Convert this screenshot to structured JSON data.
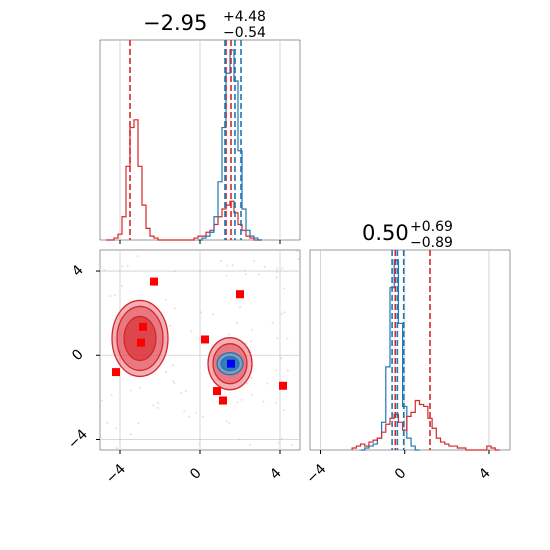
{
  "chart_data": [
    {
      "panel": "marginal-1",
      "type": "histogram",
      "title": {
        "value": "−2.95",
        "plus": "+4.48",
        "minus": "−0.54"
      },
      "xlim": [
        -5,
        5
      ],
      "grid": true,
      "quantile_lines": {
        "red": [
          -3.5,
          1.3,
          1.55
        ],
        "blue": [
          1.25,
          1.75,
          2.05
        ]
      },
      "series": [
        {
          "color": "#d62728",
          "x": [
            -4.6,
            -4.4,
            -4.2,
            -4.0,
            -3.8,
            -3.6,
            -3.4,
            -3.2,
            -3.0,
            -2.8,
            -2.6,
            -2.4,
            -2.2,
            -2.0,
            -1.8,
            -1.6,
            -1.4,
            -1.2,
            -1.0,
            -0.8,
            -0.6,
            -0.4,
            -0.2,
            0.0,
            0.2,
            0.4,
            0.6,
            0.8,
            1.0,
            1.2,
            1.4,
            1.6,
            1.8,
            2.0,
            2.2,
            2.4,
            2.6,
            2.8,
            3.0
          ],
          "values": [
            0,
            0,
            0.01,
            0.03,
            0.12,
            0.38,
            0.58,
            0.62,
            0.38,
            0.18,
            0.06,
            0.02,
            0.01,
            0,
            0,
            0,
            0,
            0,
            0,
            0,
            0,
            0,
            0.01,
            0.02,
            0.02,
            0.04,
            0.05,
            0.08,
            0.12,
            0.16,
            0.18,
            0.2,
            0.14,
            0.08,
            0.05,
            0.02,
            0.01,
            0,
            0
          ]
        },
        {
          "color": "#1f77b4",
          "x": [
            0.0,
            0.2,
            0.4,
            0.6,
            0.8,
            1.0,
            1.2,
            1.4,
            1.6,
            1.8,
            2.0,
            2.2,
            2.4,
            2.6,
            2.8,
            3.0
          ],
          "values": [
            0,
            0.01,
            0.02,
            0.04,
            0.12,
            0.3,
            0.58,
            0.86,
            0.98,
            0.82,
            0.46,
            0.16,
            0.05,
            0.02,
            0.01,
            0
          ]
        }
      ]
    },
    {
      "panel": "2d",
      "type": "contour-scatter",
      "xlim": [
        -5,
        5
      ],
      "ylim": [
        -4.5,
        5
      ],
      "grid": true,
      "red_region_centers": [
        [
          -3.0,
          0.8
        ],
        [
          1.5,
          -0.4
        ]
      ],
      "blue_region_center": [
        1.5,
        -0.4
      ],
      "red_squares": [
        [
          -2.3,
          3.5
        ],
        [
          -2.85,
          1.35
        ],
        [
          -2.95,
          0.6
        ],
        [
          -4.2,
          -0.8
        ],
        [
          0.25,
          0.75
        ],
        [
          2.0,
          2.9
        ],
        [
          4.15,
          -1.45
        ],
        [
          0.85,
          -1.7
        ],
        [
          1.15,
          -2.15
        ]
      ],
      "blue_square": [
        1.55,
        -0.4
      ],
      "xticks": [
        "−4",
        "0",
        "4"
      ],
      "yticks": [
        "−4",
        "0",
        "4"
      ]
    },
    {
      "panel": "marginal-2",
      "type": "histogram",
      "title": {
        "value": "0.50",
        "plus": "+0.69",
        "minus": "−0.89"
      },
      "xlim": [
        -4.5,
        5
      ],
      "grid": true,
      "quantile_lines": {
        "red": [
          -0.45,
          1.2
        ],
        "blue": [
          -0.6,
          -0.35,
          -0.05
        ]
      },
      "xticks": [
        "−4",
        "0",
        "4"
      ],
      "series": [
        {
          "color": "#1f77b4",
          "x": [
            -2.0,
            -1.8,
            -1.6,
            -1.4,
            -1.2,
            -1.0,
            -0.8,
            -0.6,
            -0.4,
            -0.2,
            0.0,
            0.2,
            0.4,
            0.6
          ],
          "values": [
            0,
            0.01,
            0.02,
            0.03,
            0.06,
            0.14,
            0.42,
            0.82,
            0.96,
            0.64,
            0.22,
            0.06,
            0.02,
            0
          ]
        },
        {
          "color": "#d62728",
          "x": [
            -2.4,
            -2.2,
            -2.0,
            -1.8,
            -1.6,
            -1.4,
            -1.2,
            -1.0,
            -0.8,
            -0.6,
            -0.4,
            -0.2,
            0.0,
            0.2,
            0.4,
            0.6,
            0.8,
            1.0,
            1.2,
            1.4,
            1.6,
            1.8,
            2.0,
            2.2,
            2.4,
            2.6,
            2.8,
            3.0,
            3.2,
            3.4,
            3.6,
            3.8,
            4.0,
            4.2,
            4.4
          ],
          "values": [
            0.01,
            0.02,
            0.03,
            0.02,
            0.04,
            0.05,
            0.06,
            0.09,
            0.13,
            0.16,
            0.18,
            0.14,
            0.1,
            0.17,
            0.19,
            0.25,
            0.23,
            0.22,
            0.16,
            0.11,
            0.06,
            0.04,
            0.03,
            0.02,
            0.02,
            0.01,
            0.01,
            0,
            0,
            0,
            0,
            0,
            0.02,
            0.01,
            0
          ]
        }
      ]
    }
  ]
}
